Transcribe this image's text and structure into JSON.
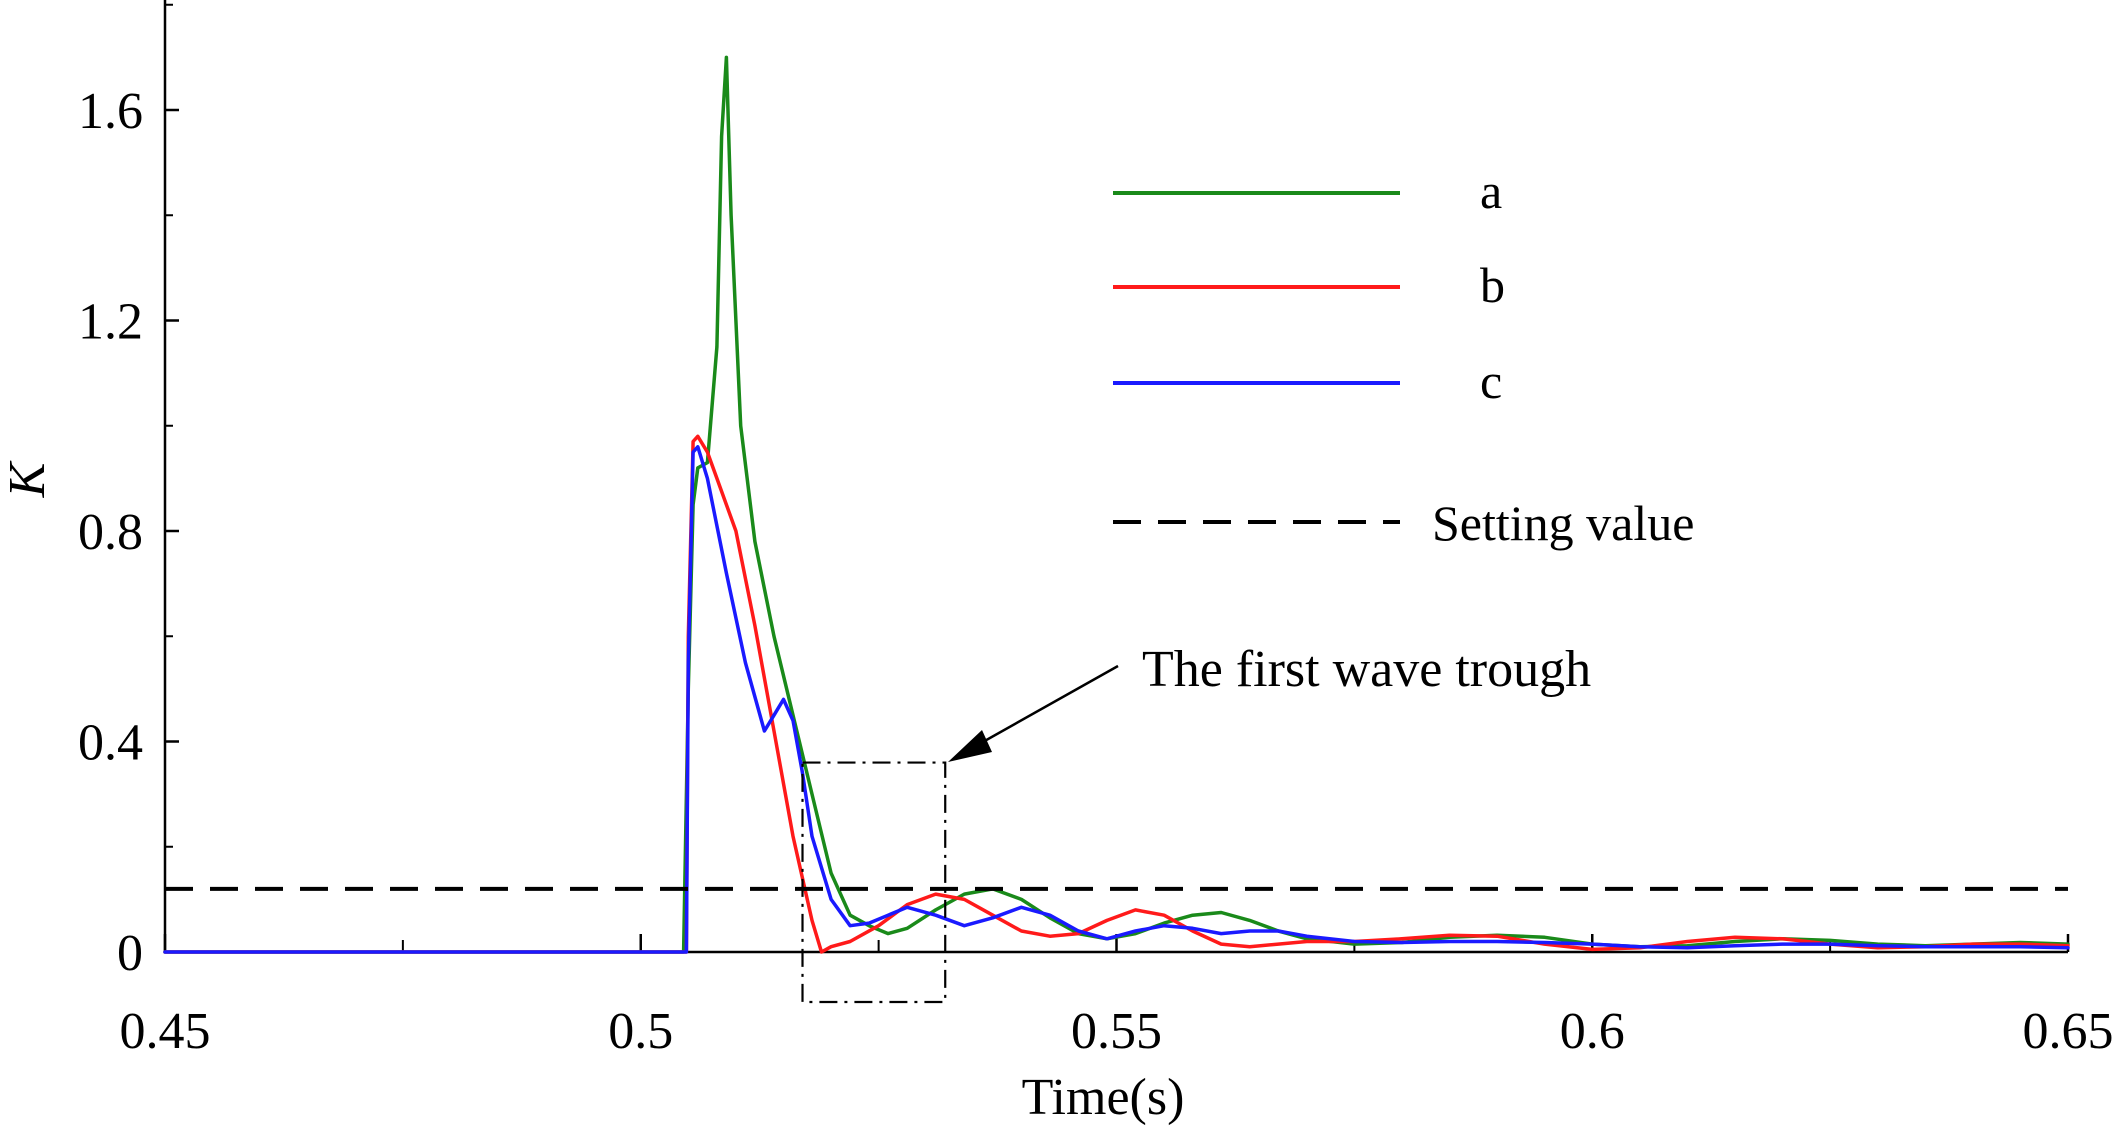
{
  "chart_data": {
    "type": "line",
    "xlabel": "Time(s)",
    "ylabel": "K",
    "xlim": [
      0.45,
      0.65
    ],
    "ylim": [
      0,
      1.8
    ],
    "x_ticks": [
      0.45,
      0.5,
      0.55,
      0.6,
      0.65
    ],
    "x_tick_labels": [
      "0.45",
      "0.5",
      "0.55",
      "0.6",
      "0.65"
    ],
    "y_ticks": [
      0,
      0.4,
      0.8,
      1.2,
      1.6
    ],
    "y_tick_labels": [
      "0",
      "0.4",
      "0.8",
      "1.2",
      "1.6"
    ],
    "legend_position": "top-right",
    "setting_value": {
      "name": "Setting value",
      "y": 0.12,
      "color": "#000000",
      "style": "dashed"
    },
    "annotation": {
      "text": "The first wave trough",
      "box_x": [
        0.517,
        0.532
      ],
      "box_y": [
        -0.095,
        0.36
      ]
    },
    "series": [
      {
        "name": "a",
        "color": "#1a8a1a",
        "x": [
          0.45,
          0.5045,
          0.505,
          0.5055,
          0.506,
          0.507,
          0.508,
          0.5085,
          0.509,
          0.5095,
          0.5105,
          0.512,
          0.514,
          0.516,
          0.518,
          0.52,
          0.522,
          0.524,
          0.526,
          0.528,
          0.531,
          0.534,
          0.537,
          0.54,
          0.543,
          0.546,
          0.549,
          0.552,
          0.555,
          0.558,
          0.561,
          0.564,
          0.567,
          0.57,
          0.575,
          0.58,
          0.585,
          0.59,
          0.595,
          0.6,
          0.605,
          0.61,
          0.615,
          0.62,
          0.625,
          0.63,
          0.635,
          0.64,
          0.645,
          0.65
        ],
        "values": [
          0,
          0,
          0.5,
          0.85,
          0.92,
          0.93,
          1.15,
          1.55,
          1.7,
          1.4,
          1.0,
          0.78,
          0.6,
          0.45,
          0.3,
          0.15,
          0.07,
          0.05,
          0.035,
          0.045,
          0.08,
          0.11,
          0.12,
          0.1,
          0.065,
          0.035,
          0.025,
          0.035,
          0.055,
          0.07,
          0.075,
          0.06,
          0.04,
          0.025,
          0.015,
          0.018,
          0.028,
          0.032,
          0.028,
          0.015,
          0.01,
          0.012,
          0.02,
          0.025,
          0.022,
          0.015,
          0.012,
          0.015,
          0.018,
          0.015
        ]
      },
      {
        "name": "b",
        "color": "#ff1a1a",
        "x": [
          0.45,
          0.5048,
          0.505,
          0.5055,
          0.506,
          0.507,
          0.508,
          0.51,
          0.512,
          0.514,
          0.516,
          0.518,
          0.519,
          0.52,
          0.522,
          0.525,
          0.528,
          0.531,
          0.534,
          0.537,
          0.54,
          0.543,
          0.546,
          0.549,
          0.552,
          0.555,
          0.558,
          0.561,
          0.564,
          0.567,
          0.57,
          0.575,
          0.58,
          0.585,
          0.59,
          0.595,
          0.6,
          0.605,
          0.61,
          0.615,
          0.62,
          0.625,
          0.63,
          0.635,
          0.64,
          0.645,
          0.65
        ],
        "values": [
          0,
          0,
          0.6,
          0.97,
          0.98,
          0.95,
          0.9,
          0.8,
          0.62,
          0.42,
          0.22,
          0.06,
          0.0,
          0.01,
          0.02,
          0.05,
          0.09,
          0.11,
          0.1,
          0.07,
          0.04,
          0.03,
          0.035,
          0.06,
          0.08,
          0.07,
          0.04,
          0.015,
          0.01,
          0.015,
          0.02,
          0.02,
          0.025,
          0.032,
          0.03,
          0.015,
          0.005,
          0.008,
          0.02,
          0.028,
          0.025,
          0.015,
          0.008,
          0.01,
          0.015,
          0.015,
          0.012
        ]
      },
      {
        "name": "c",
        "color": "#1a1aff",
        "x": [
          0.45,
          0.5048,
          0.505,
          0.5055,
          0.506,
          0.507,
          0.509,
          0.511,
          0.513,
          0.514,
          0.515,
          0.516,
          0.517,
          0.518,
          0.52,
          0.522,
          0.524,
          0.526,
          0.528,
          0.531,
          0.534,
          0.537,
          0.54,
          0.543,
          0.546,
          0.549,
          0.552,
          0.555,
          0.558,
          0.561,
          0.564,
          0.567,
          0.57,
          0.575,
          0.58,
          0.585,
          0.59,
          0.595,
          0.6,
          0.605,
          0.61,
          0.615,
          0.62,
          0.625,
          0.63,
          0.635,
          0.64,
          0.645,
          0.65
        ],
        "values": [
          0,
          0,
          0.55,
          0.95,
          0.96,
          0.9,
          0.72,
          0.55,
          0.42,
          0.45,
          0.48,
          0.44,
          0.34,
          0.22,
          0.1,
          0.05,
          0.055,
          0.07,
          0.085,
          0.07,
          0.05,
          0.065,
          0.085,
          0.07,
          0.04,
          0.025,
          0.04,
          0.05,
          0.045,
          0.035,
          0.04,
          0.04,
          0.03,
          0.02,
          0.018,
          0.02,
          0.02,
          0.018,
          0.015,
          0.01,
          0.008,
          0.012,
          0.015,
          0.015,
          0.012,
          0.01,
          0.01,
          0.01,
          0.008
        ]
      }
    ]
  }
}
